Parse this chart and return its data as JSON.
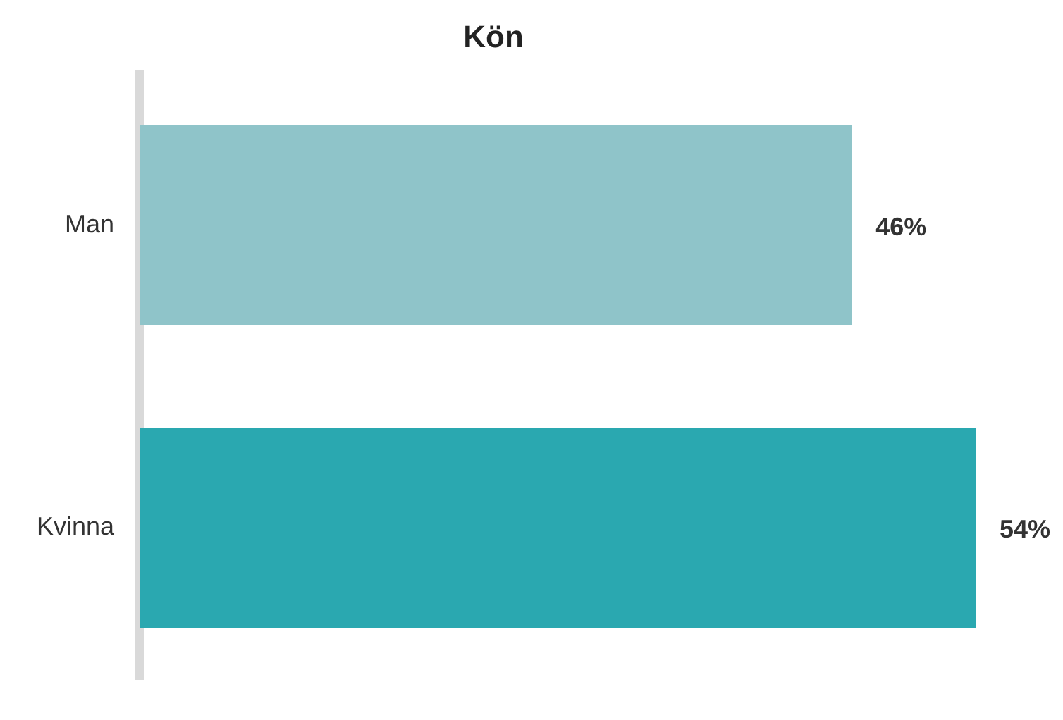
{
  "chart_data": {
    "type": "bar",
    "orientation": "horizontal",
    "title": "Kön",
    "categories": [
      "Man",
      "Kvinna"
    ],
    "values": [
      46,
      54
    ],
    "colors": [
      "#8fc4c9",
      "#2aa8b0"
    ],
    "value_labels": [
      "46%",
      "54%"
    ]
  }
}
